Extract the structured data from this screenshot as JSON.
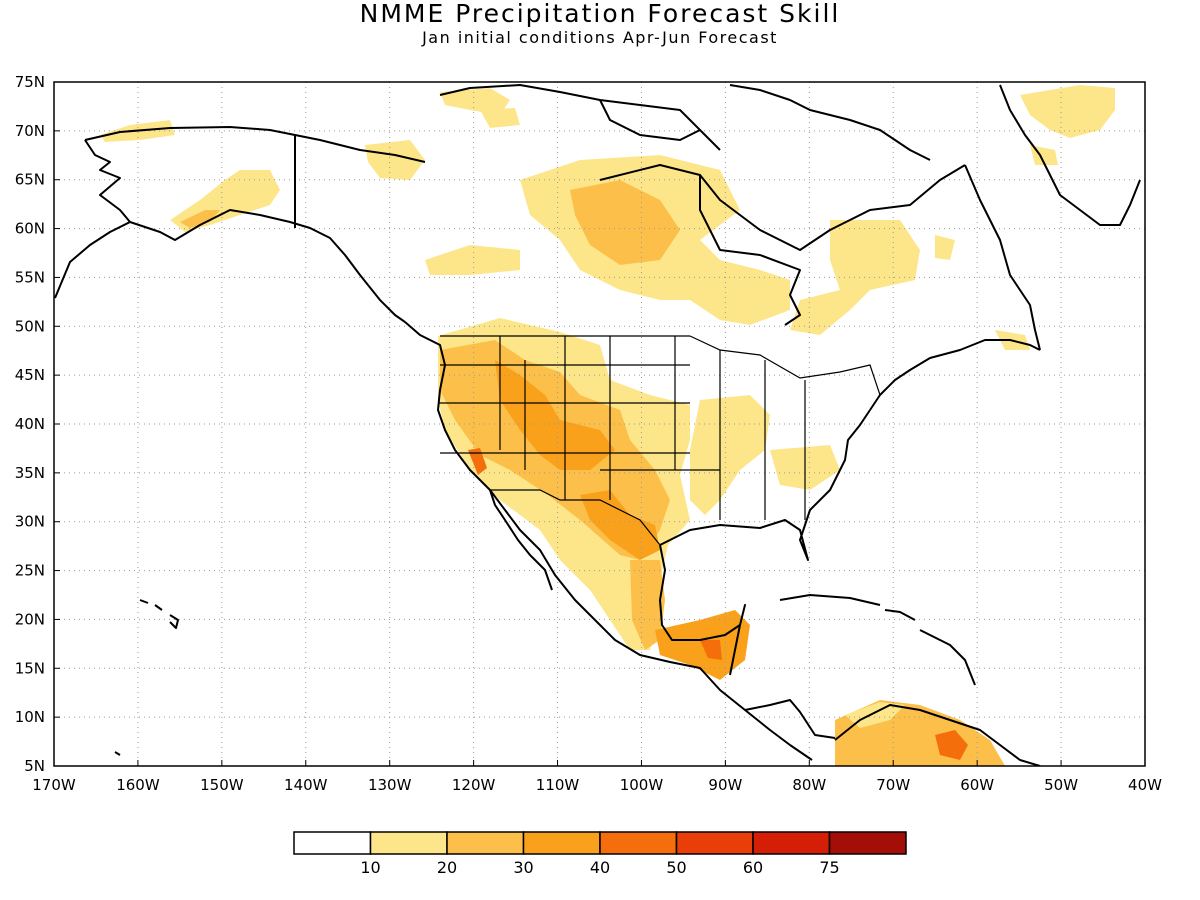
{
  "title": "NMME Precipitation Forecast Skill",
  "subtitle": "Jan initial conditions  Apr-Jun Forecast",
  "chart_data": {
    "type": "heatmap",
    "title": "NMME Precipitation Forecast Skill",
    "subtitle": "Jan initial conditions  Apr-Jun Forecast",
    "lon_range": [
      -170,
      -40
    ],
    "lat_range": [
      5,
      75
    ],
    "x_ticks": [
      "170W",
      "160W",
      "150W",
      "140W",
      "130W",
      "120W",
      "110W",
      "100W",
      "90W",
      "80W",
      "70W",
      "60W",
      "50W",
      "40W"
    ],
    "y_ticks": [
      "5N",
      "10N",
      "15N",
      "20N",
      "25N",
      "30N",
      "35N",
      "40N",
      "45N",
      "50N",
      "55N",
      "60N",
      "65N",
      "70N",
      "75N"
    ],
    "grid": "dotted",
    "colorbar": {
      "labels": [
        "10",
        "20",
        "30",
        "40",
        "50",
        "60",
        "75"
      ],
      "colors": [
        "#ffffff",
        "#fde68a",
        "#fcc04a",
        "#f9a11b",
        "#f46e0c",
        "#ea3e08",
        "#d41e05",
        "#a30e08"
      ]
    },
    "skill_regions": [
      {
        "region": "Western US / Great Basin",
        "level": 2
      },
      {
        "region": "Southwest US / Four Corners",
        "level": 3
      },
      {
        "region": "Southern California",
        "level": 4
      },
      {
        "region": "Texas / Southern Plains",
        "level": 3
      },
      {
        "region": "Northern Mexico",
        "level": 2
      },
      {
        "region": "Southern Mexico / Guatemala",
        "level": 4
      },
      {
        "region": "Central Plains",
        "level": 1
      },
      {
        "region": "Hudson Bay West",
        "level": 2
      },
      {
        "region": "Quebec / Labrador",
        "level": 1
      },
      {
        "region": "Alaska",
        "level": 1
      },
      {
        "region": "Greenland",
        "level": 1
      },
      {
        "region": "Northern South America",
        "level": 2
      },
      {
        "region": "Venezuela",
        "level": 4
      }
    ]
  }
}
